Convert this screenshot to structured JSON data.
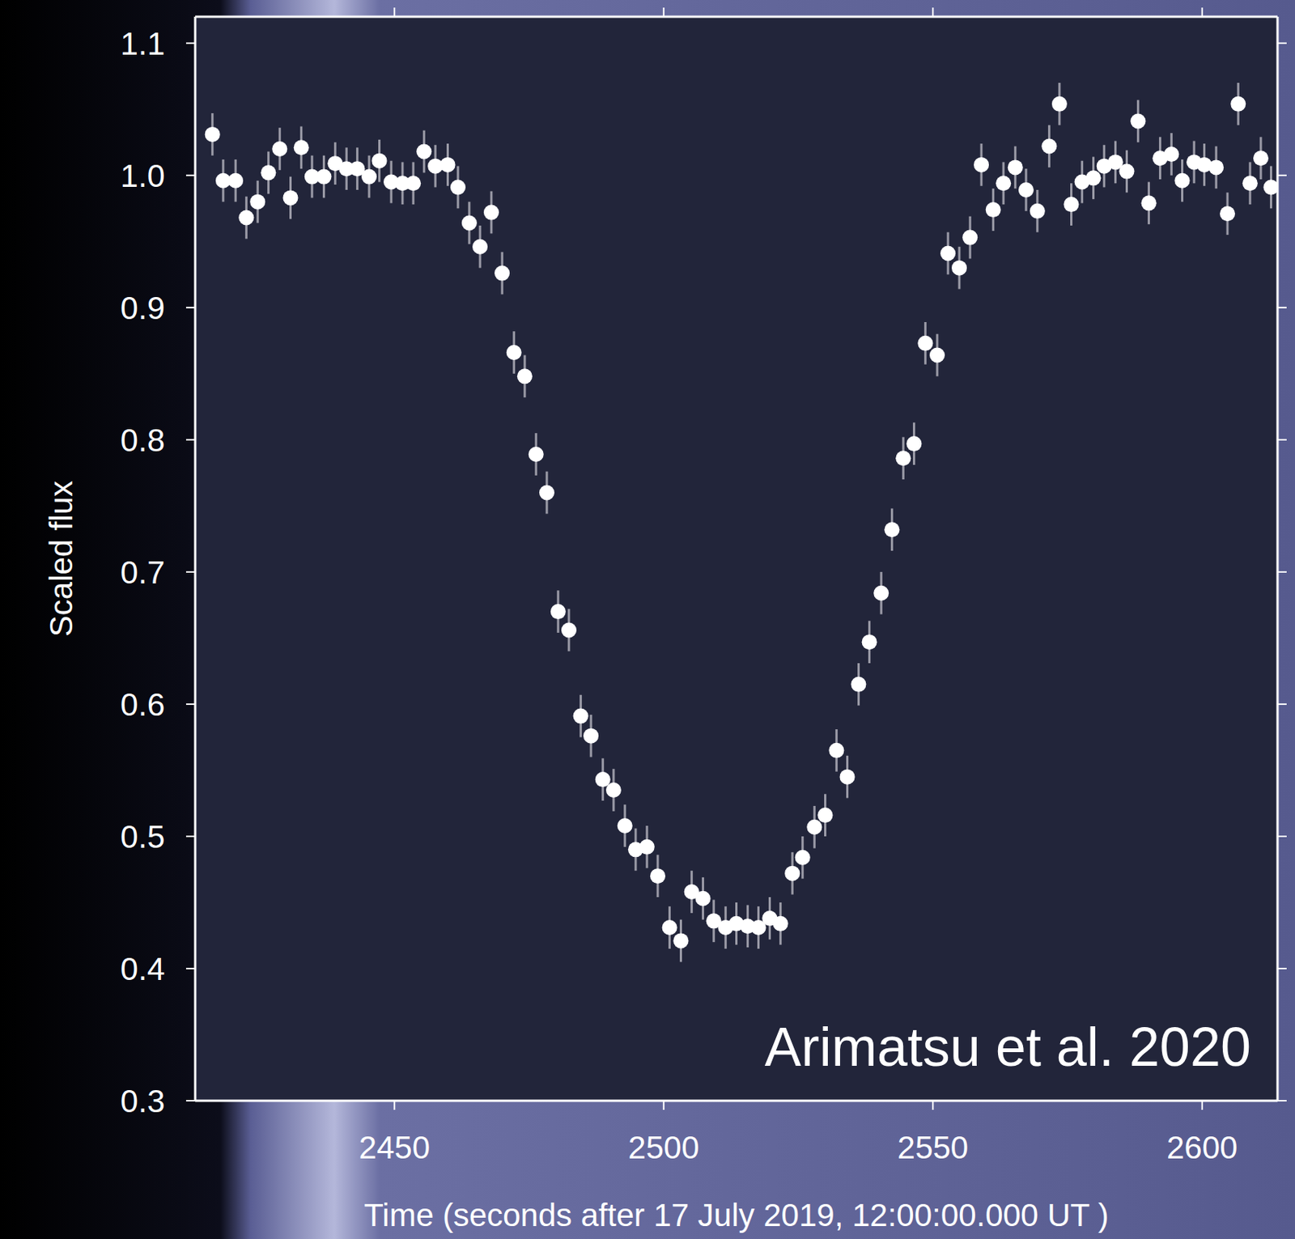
{
  "chart_data": {
    "type": "scatter",
    "xlabel": "Time  (seconds after 17 July 2019, 12:00:00.000 UT )",
    "ylabel": "Scaled flux",
    "annotation": "Arimatsu et al. 2020",
    "color": "#ffffff",
    "marker": "circle",
    "grid": false,
    "xlim": [
      2413,
      2614
    ],
    "ylim": [
      0.3,
      1.12
    ],
    "xticks": [
      2450,
      2500,
      2550,
      2600
    ],
    "yticks": [
      0.3,
      0.4,
      0.5,
      0.6,
      0.7,
      0.8,
      0.9,
      {
        "value": 1,
        "label": "1.0"
      },
      1.1
    ],
    "error": 0.016,
    "x": [
      2416.2,
      2418.2,
      2420.5,
      2422.5,
      2424.6,
      2426.6,
      2428.7,
      2430.7,
      2432.7,
      2434.7,
      2436.9,
      2439.0,
      2441.1,
      2443.1,
      2445.3,
      2447.2,
      2449.4,
      2451.5,
      2453.5,
      2455.5,
      2457.6,
      2459.9,
      2461.8,
      2463.9,
      2465.9,
      2468.0,
      2470.0,
      2472.2,
      2474.2,
      2476.3,
      2478.3,
      2480.4,
      2482.4,
      2484.6,
      2486.5,
      2488.7,
      2490.7,
      2492.8,
      2494.8,
      2496.9,
      2498.9,
      2501.1,
      2503.2,
      2505.2,
      2507.3,
      2509.3,
      2511.5,
      2513.5,
      2515.6,
      2517.6,
      2519.7,
      2521.7,
      2523.9,
      2525.8,
      2528.0,
      2530.0,
      2532.1,
      2534.1,
      2536.2,
      2538.2,
      2540.4,
      2542.4,
      2544.5,
      2546.5,
      2548.6,
      2550.8,
      2552.8,
      2554.9,
      2556.9,
      2559.0,
      2561.2,
      2563.1,
      2565.3,
      2567.3,
      2569.4,
      2571.6,
      2573.5,
      2575.7,
      2577.7,
      2579.8,
      2581.8,
      2583.9,
      2586.0,
      2588.1,
      2590.1,
      2592.2,
      2594.3,
      2596.3,
      2598.5,
      2600.4,
      2602.6,
      2604.7,
      2606.7,
      2608.9,
      2610.9,
      2612.8
    ],
    "values": [
      1.031,
      0.996,
      0.996,
      0.968,
      0.98,
      1.002,
      1.02,
      0.983,
      1.021,
      0.999,
      0.999,
      1.009,
      1.005,
      1.005,
      0.999,
      1.011,
      0.995,
      0.994,
      0.994,
      1.018,
      1.007,
      1.008,
      0.991,
      0.964,
      0.946,
      0.972,
      0.926,
      0.866,
      0.848,
      0.789,
      0.76,
      0.67,
      0.656,
      0.591,
      0.576,
      0.543,
      0.535,
      0.508,
      0.49,
      0.492,
      0.47,
      0.431,
      0.421,
      0.458,
      0.453,
      0.436,
      0.431,
      0.434,
      0.432,
      0.431,
      0.438,
      0.434,
      0.472,
      0.484,
      0.507,
      0.516,
      0.565,
      0.545,
      0.615,
      0.647,
      0.684,
      0.732,
      0.786,
      0.797,
      0.873,
      0.864,
      0.941,
      0.93,
      0.953,
      1.008,
      0.974,
      0.994,
      1.006,
      0.989,
      0.973,
      1.022,
      1.054,
      0.978,
      0.995,
      0.998,
      1.007,
      1.01,
      1.003,
      1.041,
      0.979,
      1.013,
      1.016,
      0.996,
      1.01,
      1.008,
      1.006,
      0.971,
      1.054,
      0.994,
      1.013,
      0.991
    ]
  }
}
